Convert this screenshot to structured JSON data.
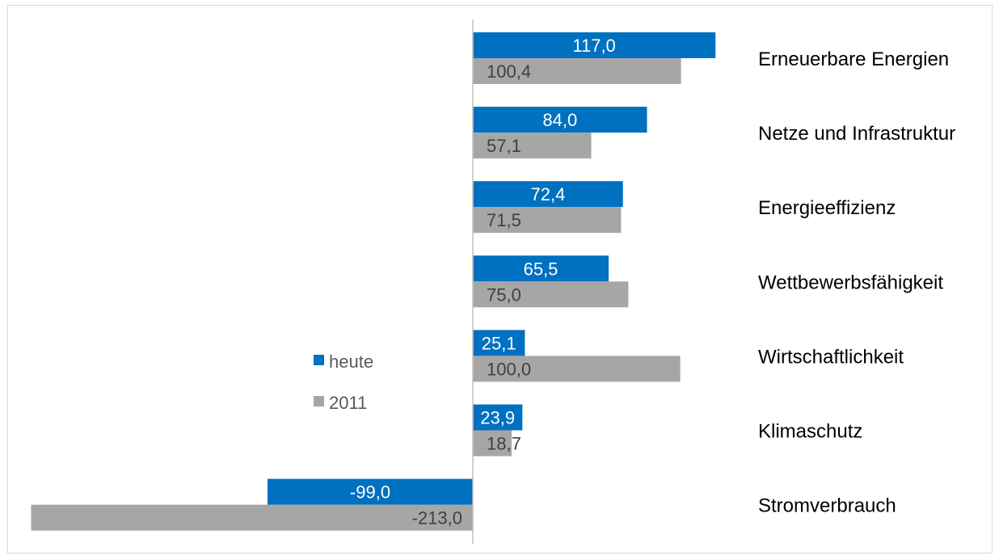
{
  "chart_data": {
    "type": "bar",
    "orientation": "horizontal",
    "categories": [
      "Erneuerbare Energien",
      "Netze und Infrastruktur",
      "Energieeffizienz",
      "Wettbewerbsfähigkeit",
      "Wirtschaftlichkeit",
      "Klimaschutz",
      "Stromverbrauch"
    ],
    "series": [
      {
        "name": "heute",
        "values": [
          117.0,
          84.0,
          72.4,
          65.5,
          25.1,
          23.9,
          -99.0
        ],
        "labels": [
          "117,0",
          "84,0",
          "72,4",
          "65,5",
          "25,1",
          "23,9",
          "-99,0"
        ],
        "color": "#0070c0"
      },
      {
        "name": "2011",
        "values": [
          100.4,
          57.1,
          71.5,
          75.0,
          100.0,
          18.7,
          -213.0
        ],
        "labels": [
          "100,4",
          "57,1",
          "71,5",
          "75,0",
          "100,0",
          "18,7",
          "-213,0"
        ],
        "color": "#a6a6a6"
      }
    ],
    "xlim": [
      -213,
      117
    ],
    "grid": false,
    "legend": "center-left",
    "title": "",
    "xlabel": "",
    "ylabel": ""
  }
}
